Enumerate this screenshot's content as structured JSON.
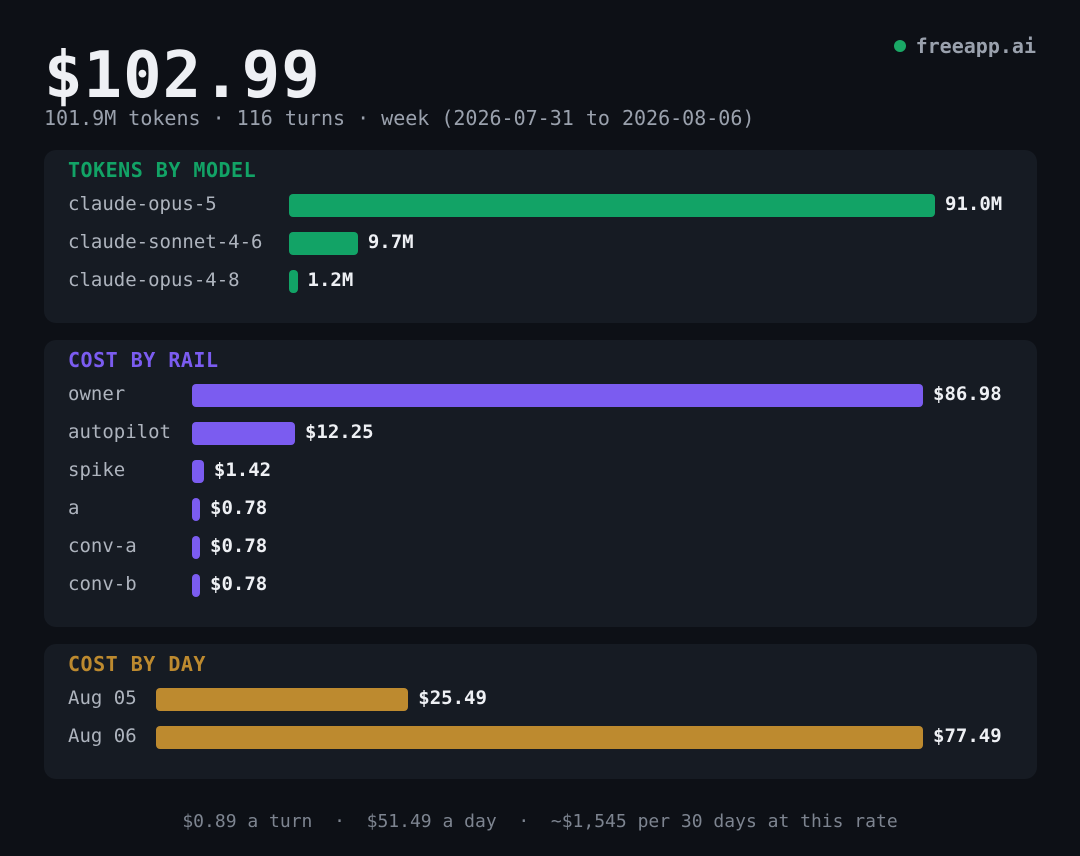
{
  "brand": {
    "name": "freeapp.ai",
    "dot_color": "#1aa866"
  },
  "header": {
    "total": "$102.99",
    "subtitle": "101.9M tokens · 116 turns · week (2026-07-31 to 2026-08-06)"
  },
  "footer": {
    "per_turn": "$0.89 a turn",
    "separator": "·",
    "per_day": "$51.49 a day",
    "projection": "~$1,545 per 30 days at this rate"
  },
  "chart_data": [
    {
      "type": "bar",
      "title": "TOKENS BY MODEL",
      "color": "#12a366",
      "categories": [
        "claude-opus-5",
        "claude-sonnet-4-6",
        "claude-opus-4-8"
      ],
      "values": [
        91.0,
        9.7,
        1.2
      ],
      "value_labels": [
        "91.0M",
        "9.7M",
        "1.2M"
      ]
    },
    {
      "type": "bar",
      "title": "COST BY RAIL",
      "color": "#7b5cf0",
      "categories": [
        "owner",
        "autopilot",
        "spike",
        "a",
        "conv-a",
        "conv-b"
      ],
      "values": [
        86.98,
        12.25,
        1.42,
        0.78,
        0.78,
        0.78
      ],
      "value_labels": [
        "$86.98",
        "$12.25",
        "$1.42",
        "$0.78",
        "$0.78",
        "$0.78"
      ]
    },
    {
      "type": "bar",
      "title": "COST BY DAY",
      "color": "#bd8a2f",
      "categories": [
        "Aug 05",
        "Aug 06"
      ],
      "values": [
        25.49,
        77.49
      ],
      "value_labels": [
        "$25.49",
        "$77.49"
      ]
    }
  ]
}
